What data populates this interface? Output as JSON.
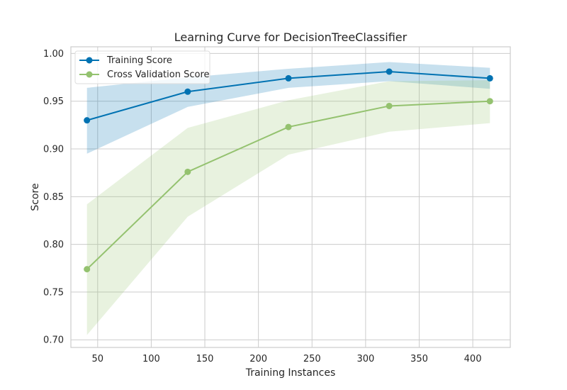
{
  "chart_data": {
    "type": "line",
    "title": "Learning Curve for DecisionTreeClassifier",
    "xlabel": "Training Instances",
    "ylabel": "Score",
    "xlim": [
      25,
      435
    ],
    "ylim": [
      0.692,
      1.007
    ],
    "xticks": [
      50,
      100,
      150,
      200,
      250,
      300,
      350,
      400
    ],
    "yticks": [
      0.7,
      0.75,
      0.8,
      0.85,
      0.9,
      0.95,
      1.0
    ],
    "grid": true,
    "legend_position": "top-left",
    "x": [
      40,
      134,
      228,
      322,
      416
    ],
    "series": [
      {
        "name": "Training Score",
        "color": "#0072b2",
        "band_color": "#0072b2",
        "values": [
          0.93,
          0.96,
          0.974,
          0.981,
          0.974
        ],
        "lower": [
          0.895,
          0.944,
          0.964,
          0.971,
          0.963
        ],
        "upper": [
          0.964,
          0.975,
          0.984,
          0.991,
          0.985
        ]
      },
      {
        "name": "Cross Validation Score",
        "color": "#94c26f",
        "band_color": "#94c26f",
        "values": [
          0.774,
          0.876,
          0.923,
          0.945,
          0.95
        ],
        "lower": [
          0.705,
          0.829,
          0.894,
          0.918,
          0.927
        ],
        "upper": [
          0.842,
          0.922,
          0.951,
          0.971,
          0.972
        ]
      }
    ]
  }
}
